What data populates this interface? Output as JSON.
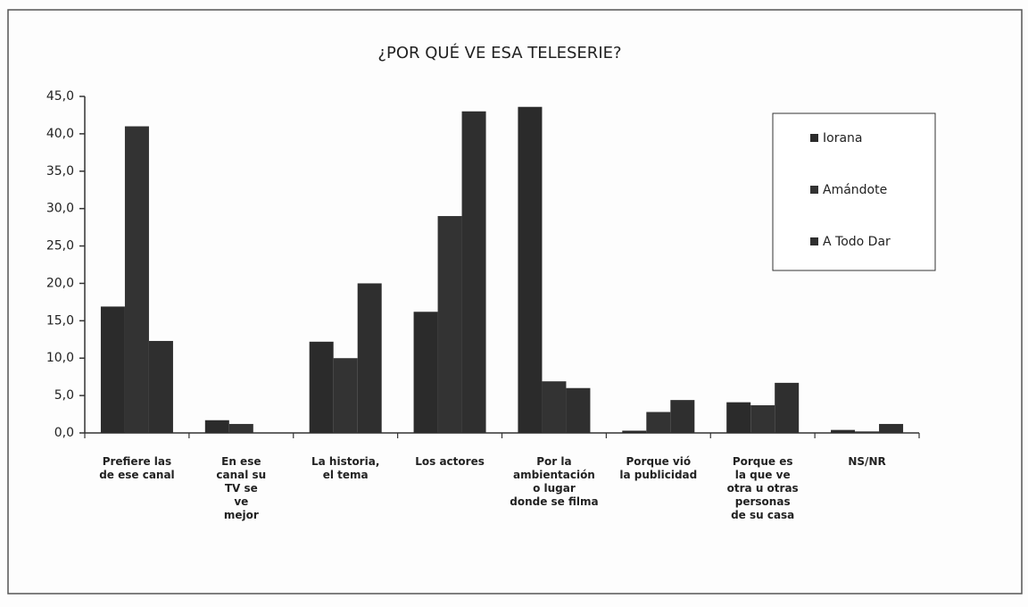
{
  "chart_data": {
    "type": "bar",
    "title": "¿POR QUÉ VE ESA TELESERIE?",
    "categories": [
      "Prefiere las\nde ese canal",
      "En ese\ncanal su\nTV se\nve\nmejor",
      "La historia,\nel tema",
      "Los actores",
      "Por la\nambientación\no lugar\ndonde se filma",
      "Porque vió\nla publicidad",
      "Porque es\nla que ve\notra u otras\npersonas\nde su casa",
      "NS/NR"
    ],
    "series": [
      {
        "name": "Iorana",
        "color": "#2b2b2b",
        "values": [
          16.9,
          1.7,
          12.2,
          16.2,
          43.6,
          0.3,
          4.1,
          0.4
        ]
      },
      {
        "name": "Amándote",
        "color": "#333333",
        "values": [
          41.0,
          1.2,
          10.0,
          29.0,
          6.9,
          2.8,
          3.7,
          0.2
        ]
      },
      {
        "name": "A Todo Dar",
        "color": "#2f2f2f",
        "values": [
          12.3,
          0,
          20.0,
          43.0,
          6.0,
          4.4,
          6.7,
          1.2
        ]
      }
    ],
    "ylim": [
      0,
      45
    ],
    "yticks": [
      {
        "value": 0,
        "label": "0,0"
      },
      {
        "value": 5,
        "label": "5,0"
      },
      {
        "value": 10,
        "label": "10,0"
      },
      {
        "value": 15,
        "label": "15,0"
      },
      {
        "value": 20,
        "label": "20,0"
      },
      {
        "value": 25,
        "label": "25,0"
      },
      {
        "value": 30,
        "label": "30,0"
      },
      {
        "value": 35,
        "label": "35,0"
      },
      {
        "value": 40,
        "label": "40,0"
      },
      {
        "value": 45,
        "label": "45,0"
      }
    ],
    "grid": false,
    "legend": "upper right"
  }
}
